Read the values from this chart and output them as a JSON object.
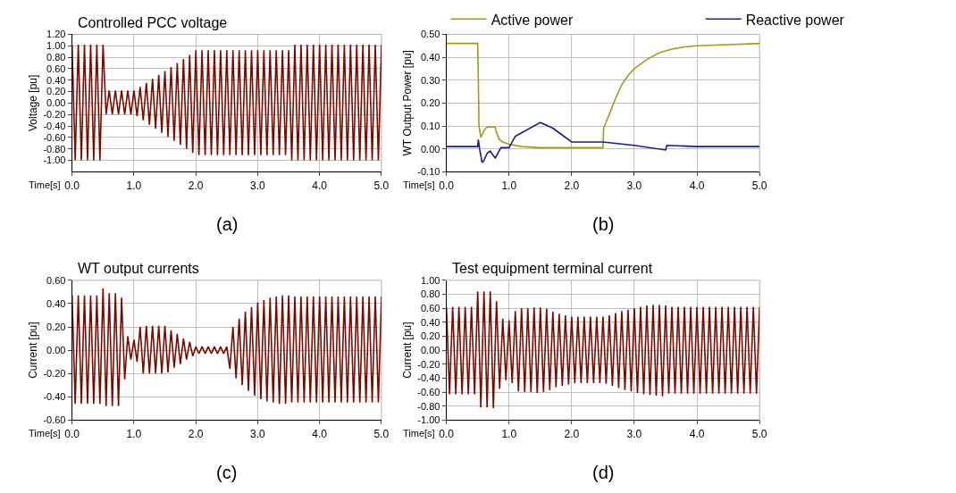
{
  "chart_data": [
    {
      "type": "line",
      "title": "Controlled PCC voltage",
      "ylabel": "Voltage [pu]",
      "xlabel": "Time[s]",
      "annotations": [
        "(a)"
      ],
      "grid": true,
      "legend": false,
      "xlim": [
        0,
        5
      ],
      "xticks": [
        {
          "value": 0,
          "label": "0.0"
        },
        {
          "value": 1,
          "label": "1.0"
        },
        {
          "value": 2,
          "label": "2.0"
        },
        {
          "value": 3,
          "label": "3.0"
        },
        {
          "value": 4,
          "label": "4.0"
        },
        {
          "value": 5,
          "label": "5.0"
        }
      ],
      "ylim": [
        -1.2,
        1.2
      ],
      "yticks": [
        {
          "value": -1.0,
          "label": "-1.00"
        },
        {
          "value": -0.8,
          "label": "-0.80"
        },
        {
          "value": -0.6,
          "label": "-0.60"
        },
        {
          "value": -0.4,
          "label": "-0.40"
        },
        {
          "value": -0.2,
          "label": "-0.20"
        },
        {
          "value": 0,
          "label": "0.00"
        },
        {
          "value": 0.2,
          "label": "0.20"
        },
        {
          "value": 0.4,
          "label": "0.40"
        },
        {
          "value": 0.6,
          "label": "0.60"
        },
        {
          "value": 0.8,
          "label": "0.80"
        },
        {
          "value": 1.0,
          "label": "1.00"
        },
        {
          "value": 1.2,
          "label": "1.20"
        }
      ],
      "x": [
        0,
        0.05,
        0.1,
        0.15,
        0.2,
        0.25,
        0.3,
        0.35,
        0.4,
        0.45,
        0.5,
        0.55,
        0.6,
        0.65,
        0.7,
        0.75,
        0.8,
        0.85,
        0.9,
        0.95,
        1.0,
        1.05,
        1.1,
        1.15,
        1.2,
        1.25,
        1.3,
        1.35,
        1.4,
        1.45,
        1.5,
        1.55,
        1.6,
        1.65,
        1.7,
        1.75,
        1.8,
        1.85,
        1.9,
        1.95,
        2.0,
        2.05,
        2.1,
        2.15,
        2.2,
        2.25,
        2.3,
        2.35,
        2.4,
        2.45,
        2.5,
        2.55,
        2.6,
        2.65,
        2.7,
        2.75,
        2.8,
        2.85,
        2.9,
        2.95,
        3.0,
        3.05,
        3.1,
        3.15,
        3.2,
        3.25,
        3.3,
        3.35,
        3.4,
        3.45,
        3.5,
        3.55,
        3.6,
        3.65,
        3.7,
        3.75,
        3.8,
        3.85,
        3.9,
        3.95,
        4.0,
        4.05,
        4.1,
        4.15,
        4.2,
        4.25,
        4.3,
        4.35,
        4.4,
        4.45,
        4.5,
        4.55,
        4.6,
        4.65,
        4.7,
        4.75,
        4.8,
        4.85,
        4.9,
        4.95,
        5.0
      ],
      "series": [
        {
          "color": "#7a0a00",
          "values": [
            1.02,
            -1.0,
            1.02,
            -1.0,
            1.02,
            -1.0,
            1.02,
            -1.0,
            1.02,
            -1.0,
            1.02,
            -0.2,
            0.22,
            -0.2,
            0.22,
            -0.2,
            0.22,
            -0.2,
            0.22,
            -0.2,
            0.22,
            -0.23,
            0.28,
            -0.3,
            0.35,
            -0.38,
            0.42,
            -0.45,
            0.49,
            -0.52,
            0.56,
            -0.59,
            0.63,
            -0.66,
            0.7,
            -0.73,
            0.77,
            -0.8,
            0.84,
            -0.87,
            0.92,
            -0.91,
            0.92,
            -0.91,
            0.92,
            -0.91,
            0.92,
            -0.91,
            0.92,
            -0.91,
            0.92,
            -0.91,
            0.92,
            -0.91,
            0.92,
            -0.91,
            0.92,
            -0.91,
            0.92,
            -0.91,
            0.92,
            -0.91,
            0.92,
            -0.91,
            0.92,
            -0.91,
            0.92,
            -0.91,
            0.92,
            -0.91,
            0.92,
            -1.0,
            1.02,
            -1.0,
            1.02,
            -1.0,
            1.02,
            -1.0,
            1.02,
            -1.0,
            1.02,
            -1.0,
            1.02,
            -1.0,
            1.02,
            -1.0,
            1.02,
            -1.0,
            1.02,
            -1.0,
            1.02,
            -1.0,
            1.02,
            -1.0,
            1.02,
            -1.0,
            1.02,
            -1.0,
            1.02,
            -1.0,
            1.02
          ]
        }
      ]
    },
    {
      "type": "line",
      "ylabel": "WT Output Power [pu]",
      "xlabel": "Time[s]",
      "annotations": [
        "(b)"
      ],
      "grid": true,
      "legend": "top",
      "xlim": [
        0,
        5
      ],
      "xticks": [
        {
          "value": 0,
          "label": "0.0"
        },
        {
          "value": 1,
          "label": "1.0"
        },
        {
          "value": 2,
          "label": "2.0"
        },
        {
          "value": 3,
          "label": "3.0"
        },
        {
          "value": 4,
          "label": "4.0"
        },
        {
          "value": 5,
          "label": "5.0"
        }
      ],
      "ylim": [
        -0.1,
        0.5
      ],
      "yticks": [
        {
          "value": -0.1,
          "label": "-0.10"
        },
        {
          "value": 0,
          "label": "0.00"
        },
        {
          "value": 0.1,
          "label": "0.10"
        },
        {
          "value": 0.2,
          "label": "0.20"
        },
        {
          "value": 0.3,
          "label": "0.30"
        },
        {
          "value": 0.4,
          "label": "0.40"
        },
        {
          "value": 0.5,
          "label": "0.50"
        }
      ],
      "series": [
        {
          "name": "Active power",
          "color": "#9c9c1c",
          "x": [
            0,
            0.5,
            0.51,
            0.52,
            0.55,
            0.6,
            0.65,
            0.78,
            0.8,
            0.85,
            0.9,
            1.0,
            1.2,
            1.5,
            2.0,
            2.5,
            2.51,
            2.6,
            2.7,
            2.8,
            2.9,
            3.0,
            3.2,
            3.4,
            3.6,
            3.8,
            4.0,
            4.5,
            5.0
          ],
          "values": [
            0.46,
            0.46,
            0.31,
            0.1,
            0.05,
            0.08,
            0.095,
            0.095,
            0.07,
            0.04,
            0.03,
            0.02,
            0.01,
            0.005,
            0.005,
            0.005,
            0.09,
            0.15,
            0.22,
            0.28,
            0.32,
            0.35,
            0.39,
            0.42,
            0.435,
            0.445,
            0.45,
            0.455,
            0.46
          ]
        },
        {
          "name": "Reactive power",
          "color": "#1c1c8c",
          "x": [
            0,
            0.5,
            0.51,
            0.53,
            0.57,
            0.6,
            0.65,
            0.7,
            0.75,
            0.78,
            0.82,
            0.87,
            1.0,
            1.05,
            1.1,
            1.2,
            1.5,
            1.7,
            1.85,
            2.0,
            2.5,
            3.0,
            3.5,
            3.52,
            4.0,
            5.0
          ],
          "values": [
            0.01,
            0.01,
            0.04,
            0.0,
            -0.06,
            -0.05,
            -0.02,
            -0.01,
            -0.03,
            -0.04,
            -0.02,
            0.005,
            0.005,
            0.03,
            0.055,
            0.07,
            0.115,
            0.09,
            0.06,
            0.03,
            0.03,
            0.015,
            -0.005,
            0.015,
            0.01,
            0.01
          ]
        }
      ]
    },
    {
      "type": "line",
      "title": "WT output currents",
      "ylabel": "Current [pu]",
      "xlabel": "Time[s]",
      "annotations": [
        "(c)"
      ],
      "grid": true,
      "legend": false,
      "xlim": [
        0,
        5
      ],
      "xticks": [
        {
          "value": 0,
          "label": "0.0"
        },
        {
          "value": 1,
          "label": "1.0"
        },
        {
          "value": 2,
          "label": "2.0"
        },
        {
          "value": 3,
          "label": "3.0"
        },
        {
          "value": 4,
          "label": "4.0"
        },
        {
          "value": 5,
          "label": "5.0"
        }
      ],
      "ylim": [
        -0.6,
        0.6
      ],
      "yticks": [
        {
          "value": -0.6,
          "label": "-0.60"
        },
        {
          "value": -0.4,
          "label": "-0.40"
        },
        {
          "value": -0.2,
          "label": "-0.20"
        },
        {
          "value": 0,
          "label": "0.00"
        },
        {
          "value": 0.2,
          "label": "0.20"
        },
        {
          "value": 0.4,
          "label": "0.40"
        },
        {
          "value": 0.6,
          "label": "0.60"
        }
      ],
      "x": [
        0,
        0.05,
        0.1,
        0.15,
        0.2,
        0.25,
        0.3,
        0.35,
        0.4,
        0.45,
        0.5,
        0.55,
        0.6,
        0.65,
        0.7,
        0.75,
        0.8,
        0.85,
        0.9,
        0.95,
        1.0,
        1.05,
        1.1,
        1.15,
        1.2,
        1.25,
        1.3,
        1.35,
        1.4,
        1.45,
        1.5,
        1.55,
        1.6,
        1.65,
        1.7,
        1.75,
        1.8,
        1.85,
        1.9,
        1.95,
        2.0,
        2.05,
        2.1,
        2.15,
        2.2,
        2.25,
        2.3,
        2.35,
        2.4,
        2.45,
        2.5,
        2.55,
        2.6,
        2.65,
        2.7,
        2.75,
        2.8,
        2.85,
        2.9,
        2.95,
        3.0,
        3.05,
        3.1,
        3.15,
        3.2,
        3.25,
        3.3,
        3.35,
        3.4,
        3.45,
        3.5,
        3.55,
        3.6,
        3.65,
        3.7,
        3.75,
        3.8,
        3.85,
        3.9,
        3.95,
        4.0,
        4.05,
        4.1,
        4.15,
        4.2,
        4.25,
        4.3,
        4.35,
        4.4,
        4.45,
        4.5,
        4.55,
        4.6,
        4.65,
        4.7,
        4.75,
        4.8,
        4.85,
        4.9,
        4.95,
        5.0
      ],
      "series": [
        {
          "color": "#7a0a00",
          "values": [
            0.47,
            -0.46,
            0.47,
            -0.46,
            0.47,
            -0.46,
            0.47,
            -0.46,
            0.47,
            -0.46,
            0.53,
            -0.48,
            0.49,
            -0.48,
            0.49,
            -0.48,
            0.45,
            -0.25,
            0.12,
            -0.08,
            0.09,
            -0.1,
            0.2,
            -0.2,
            0.21,
            -0.2,
            0.21,
            -0.2,
            0.21,
            -0.2,
            0.21,
            -0.19,
            0.17,
            -0.15,
            0.14,
            -0.12,
            0.1,
            -0.08,
            0.07,
            -0.05,
            0.03,
            -0.03,
            0.03,
            -0.03,
            0.03,
            -0.03,
            0.03,
            -0.03,
            0.03,
            -0.03,
            0.03,
            -0.16,
            0.2,
            -0.24,
            0.27,
            -0.3,
            0.33,
            -0.35,
            0.37,
            -0.39,
            0.41,
            -0.42,
            0.43,
            -0.44,
            0.45,
            -0.45,
            0.46,
            -0.46,
            0.47,
            -0.46,
            0.47,
            -0.45,
            0.46,
            -0.45,
            0.46,
            -0.45,
            0.46,
            -0.45,
            0.46,
            -0.45,
            0.46,
            -0.45,
            0.46,
            -0.45,
            0.46,
            -0.45,
            0.46,
            -0.45,
            0.46,
            -0.45,
            0.46,
            -0.45,
            0.46,
            -0.45,
            0.46,
            -0.45,
            0.46,
            -0.45,
            0.46,
            -0.45,
            0.46
          ]
        }
      ]
    },
    {
      "type": "line",
      "title": "Test equipment terminal current",
      "ylabel": "Current [pu]",
      "xlabel": "Time[s]",
      "annotations": [
        "(d)"
      ],
      "grid": true,
      "legend": false,
      "xlim": [
        0,
        5
      ],
      "xticks": [
        {
          "value": 0,
          "label": "0.0"
        },
        {
          "value": 1,
          "label": "1.0"
        },
        {
          "value": 2,
          "label": "2.0"
        },
        {
          "value": 3,
          "label": "3.0"
        },
        {
          "value": 4,
          "label": "4.0"
        },
        {
          "value": 5,
          "label": "5.0"
        }
      ],
      "ylim": [
        -1.0,
        1.0
      ],
      "yticks": [
        {
          "value": -1.0,
          "label": "-1.00"
        },
        {
          "value": -0.8,
          "label": "-0.80"
        },
        {
          "value": -0.6,
          "label": "-0.60"
        },
        {
          "value": -0.4,
          "label": "-0.40"
        },
        {
          "value": -0.2,
          "label": "-0.20"
        },
        {
          "value": 0,
          "label": "0.00"
        },
        {
          "value": 0.2,
          "label": "0.20"
        },
        {
          "value": 0.4,
          "label": "0.40"
        },
        {
          "value": 0.6,
          "label": "0.60"
        },
        {
          "value": 0.8,
          "label": "0.80"
        },
        {
          "value": 1.0,
          "label": "1.00"
        }
      ],
      "x": [
        0,
        0.05,
        0.1,
        0.15,
        0.2,
        0.25,
        0.3,
        0.35,
        0.4,
        0.45,
        0.5,
        0.55,
        0.6,
        0.65,
        0.7,
        0.75,
        0.8,
        0.85,
        0.9,
        0.95,
        1.0,
        1.05,
        1.1,
        1.15,
        1.2,
        1.25,
        1.3,
        1.35,
        1.4,
        1.45,
        1.5,
        1.55,
        1.6,
        1.65,
        1.7,
        1.75,
        1.8,
        1.85,
        1.9,
        1.95,
        2.0,
        2.05,
        2.1,
        2.15,
        2.2,
        2.25,
        2.3,
        2.35,
        2.4,
        2.45,
        2.5,
        2.55,
        2.6,
        2.65,
        2.7,
        2.75,
        2.8,
        2.85,
        2.9,
        2.95,
        3.0,
        3.05,
        3.1,
        3.15,
        3.2,
        3.25,
        3.3,
        3.35,
        3.4,
        3.45,
        3.5,
        3.55,
        3.6,
        3.65,
        3.7,
        3.75,
        3.8,
        3.85,
        3.9,
        3.95,
        4.0,
        4.05,
        4.1,
        4.15,
        4.2,
        4.25,
        4.3,
        4.35,
        4.4,
        4.45,
        4.5,
        4.55,
        4.6,
        4.65,
        4.7,
        4.75,
        4.8,
        4.85,
        4.9,
        4.95,
        5.0
      ],
      "series": [
        {
          "color": "#7a0a00",
          "values": [
            0.62,
            -0.63,
            0.62,
            -0.63,
            0.62,
            -0.63,
            0.62,
            -0.63,
            0.62,
            -0.63,
            0.84,
            -0.82,
            0.84,
            -0.82,
            0.84,
            -0.83,
            0.7,
            -0.55,
            0.45,
            -0.43,
            0.43,
            -0.47,
            0.56,
            -0.59,
            0.6,
            -0.6,
            0.6,
            -0.6,
            0.61,
            -0.61,
            0.61,
            -0.6,
            0.59,
            -0.57,
            0.55,
            -0.53,
            0.52,
            -0.51,
            0.5,
            -0.49,
            0.48,
            -0.47,
            0.48,
            -0.47,
            0.48,
            -0.47,
            0.48,
            -0.47,
            0.48,
            -0.47,
            0.48,
            -0.48,
            0.5,
            -0.51,
            0.53,
            -0.54,
            0.56,
            -0.57,
            0.58,
            -0.59,
            0.6,
            -0.61,
            0.62,
            -0.63,
            0.64,
            -0.64,
            0.65,
            -0.65,
            0.65,
            -0.66,
            0.64,
            -0.62,
            0.62,
            -0.62,
            0.62,
            -0.62,
            0.62,
            -0.62,
            0.62,
            -0.62,
            0.62,
            -0.62,
            0.62,
            -0.62,
            0.62,
            -0.62,
            0.62,
            -0.62,
            0.62,
            -0.62,
            0.62,
            -0.62,
            0.62,
            -0.62,
            0.62,
            -0.62,
            0.62,
            -0.62,
            0.62,
            -0.62,
            0.62
          ]
        }
      ]
    }
  ]
}
